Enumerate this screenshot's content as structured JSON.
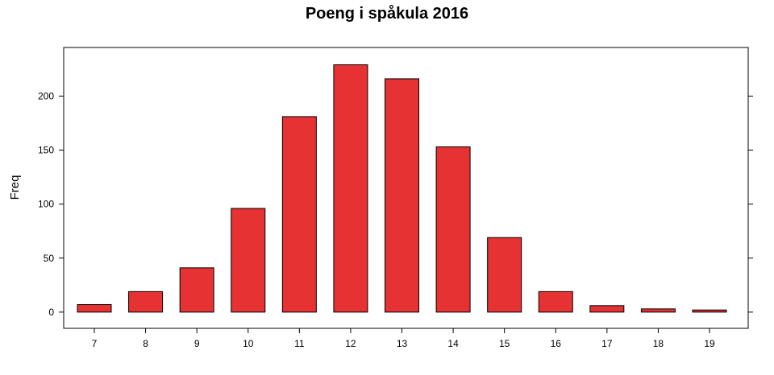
{
  "chart_data": {
    "type": "bar",
    "title": "Poeng i spåkula 2016",
    "xlabel": "",
    "ylabel": "Freq",
    "categories": [
      "7",
      "8",
      "9",
      "10",
      "11",
      "12",
      "13",
      "14",
      "15",
      "16",
      "17",
      "18",
      "19"
    ],
    "values": [
      7,
      19,
      41,
      96,
      181,
      229,
      216,
      153,
      69,
      19,
      6,
      3,
      2
    ],
    "ylim": [
      -15,
      245
    ],
    "yticks": [
      "0",
      "50",
      "100",
      "150",
      "200"
    ],
    "grid": false,
    "legend": "none",
    "bar_color": "#e63232",
    "bar_border_color": "#000000"
  }
}
